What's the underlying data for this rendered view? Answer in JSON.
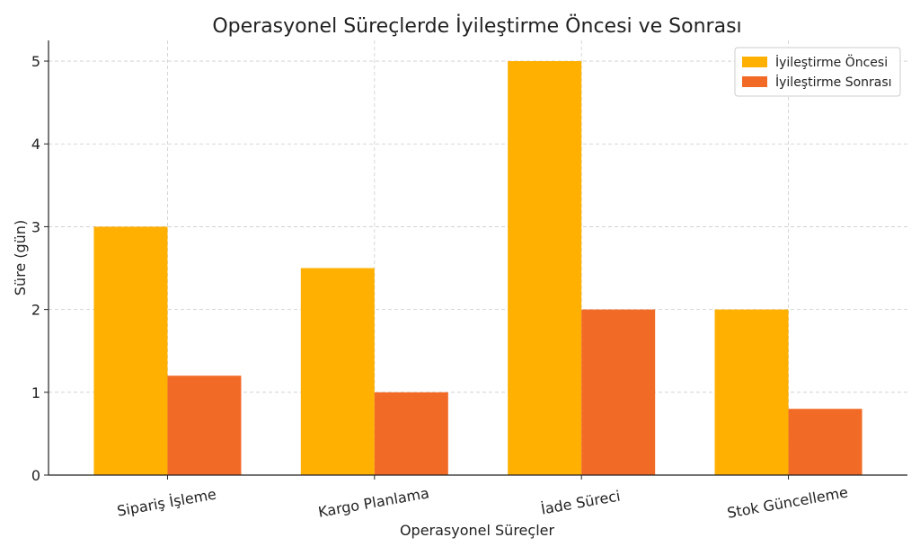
{
  "chart_data": {
    "type": "bar",
    "title": "Operasyonel Süreçlerde İyileştirme Öncesi ve Sonrası",
    "xlabel": "Operasyonel Süreçler",
    "ylabel": "Süre (gün)",
    "categories": [
      "Sipariş İşleme",
      "Kargo Planlama",
      "İade Süreci",
      "Stok Güncelleme"
    ],
    "series": [
      {
        "name": "İyileştirme Öncesi",
        "values": [
          3,
          2.5,
          5,
          2
        ],
        "color": "#FFB000"
      },
      {
        "name": "İyileştirme Sonrası",
        "values": [
          1.2,
          1,
          2,
          0.8
        ],
        "color": "#F26B26"
      }
    ],
    "ylim": [
      0,
      5.25
    ],
    "yticks": [
      "0",
      "1",
      "2",
      "3",
      "4",
      "5"
    ],
    "grid": true,
    "legend_position": "top-right"
  }
}
